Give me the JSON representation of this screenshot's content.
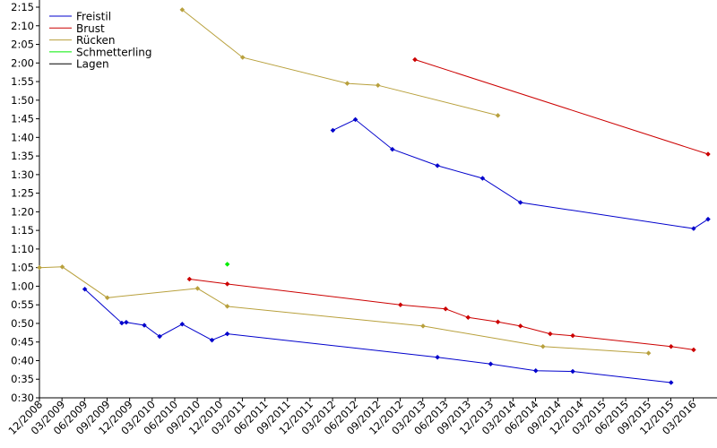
{
  "chart_data": {
    "type": "line",
    "title": "",
    "xlabel": "",
    "ylabel": "",
    "x_ticks": [
      "12/2008",
      "03/2009",
      "06/2009",
      "09/2009",
      "12/2009",
      "03/2010",
      "06/2010",
      "09/2010",
      "12/2010",
      "03/2011",
      "06/2011",
      "09/2011",
      "12/2011",
      "03/2012",
      "06/2012",
      "09/2012",
      "12/2012",
      "03/2013",
      "06/2013",
      "09/2013",
      "12/2013",
      "03/2014",
      "06/2014",
      "09/2014",
      "12/2014",
      "03/2015",
      "06/2015",
      "09/2015",
      "12/2015",
      "03/2016"
    ],
    "x_ticks_decimal": [
      2008.917,
      2009.167,
      2009.417,
      2009.667,
      2009.917,
      2010.167,
      2010.417,
      2010.667,
      2010.917,
      2011.167,
      2011.417,
      2011.667,
      2011.917,
      2012.167,
      2012.417,
      2012.667,
      2012.917,
      2013.167,
      2013.417,
      2013.667,
      2013.917,
      2014.167,
      2014.417,
      2014.667,
      2014.917,
      2015.167,
      2015.417,
      2015.667,
      2015.917,
      2016.167
    ],
    "y_ticks": [
      "0:30",
      "0:35",
      "0:40",
      "0:45",
      "0:50",
      "0:55",
      "1:00",
      "1:05",
      "1:10",
      "1:15",
      "1:20",
      "1:25",
      "1:30",
      "1:35",
      "1:40",
      "1:45",
      "1:50",
      "1:55",
      "2:00",
      "2:05",
      "2:10",
      "2:15"
    ],
    "y_unit": "seconds",
    "ylim": [
      30,
      135
    ],
    "xlim": [
      2008.917,
      2016.33
    ],
    "grid": false,
    "legend_position": "top-left",
    "series": [
      {
        "name": "Freistil",
        "color": "#0000cc",
        "segments": [
          [
            [
              2009.42,
              59.2
            ],
            [
              2009.83,
              50.1
            ],
            [
              2009.88,
              50.3
            ],
            [
              2010.08,
              49.5
            ],
            [
              2010.25,
              46.5
            ],
            [
              2010.5,
              49.8
            ],
            [
              2010.83,
              45.5
            ],
            [
              2011.0,
              47.2
            ],
            [
              2013.33,
              40.9
            ],
            [
              2013.92,
              39.1
            ],
            [
              2014.42,
              37.3
            ],
            [
              2014.83,
              37.1
            ],
            [
              2015.92,
              34.1
            ]
          ],
          [
            [
              2012.17,
              101.9
            ],
            [
              2012.42,
              104.8
            ],
            [
              2012.83,
              96.8
            ],
            [
              2013.33,
              92.4
            ],
            [
              2013.83,
              89.0
            ],
            [
              2014.25,
              82.5
            ],
            [
              2016.17,
              75.5
            ],
            [
              2016.33,
              78.0
            ]
          ]
        ]
      },
      {
        "name": "Brust",
        "color": "#cc0000",
        "segments": [
          [
            [
              2010.58,
              61.9
            ],
            [
              2011.0,
              60.6
            ],
            [
              2012.92,
              55.0
            ],
            [
              2013.42,
              53.9
            ],
            [
              2013.67,
              51.6
            ],
            [
              2014.0,
              50.4
            ],
            [
              2014.25,
              49.3
            ],
            [
              2014.58,
              47.2
            ],
            [
              2014.83,
              46.7
            ],
            [
              2015.92,
              43.8
            ],
            [
              2016.17,
              42.9
            ]
          ],
          [
            [
              2013.08,
              120.9
            ],
            [
              2016.33,
              95.5
            ]
          ]
        ]
      },
      {
        "name": "Rücken",
        "color": "#b8a03c",
        "segments": [
          [
            [
              2008.917,
              65.0
            ],
            [
              2009.17,
              65.2
            ],
            [
              2009.67,
              56.9
            ],
            [
              2010.67,
              59.4
            ],
            [
              2011.0,
              54.6
            ],
            [
              2013.17,
              49.3
            ],
            [
              2014.5,
              43.8
            ],
            [
              2015.67,
              42.0
            ]
          ],
          [
            [
              2010.5,
              134.3
            ],
            [
              2011.17,
              121.5
            ],
            [
              2012.33,
              114.5
            ],
            [
              2012.67,
              114.0
            ],
            [
              2014.0,
              105.9
            ]
          ]
        ]
      },
      {
        "name": "Schmetterling",
        "color": "#00ee00",
        "segments": [
          [
            [
              2011.0,
              65.9
            ]
          ]
        ]
      },
      {
        "name": "Lagen",
        "color": "#000000",
        "segments": []
      }
    ]
  }
}
